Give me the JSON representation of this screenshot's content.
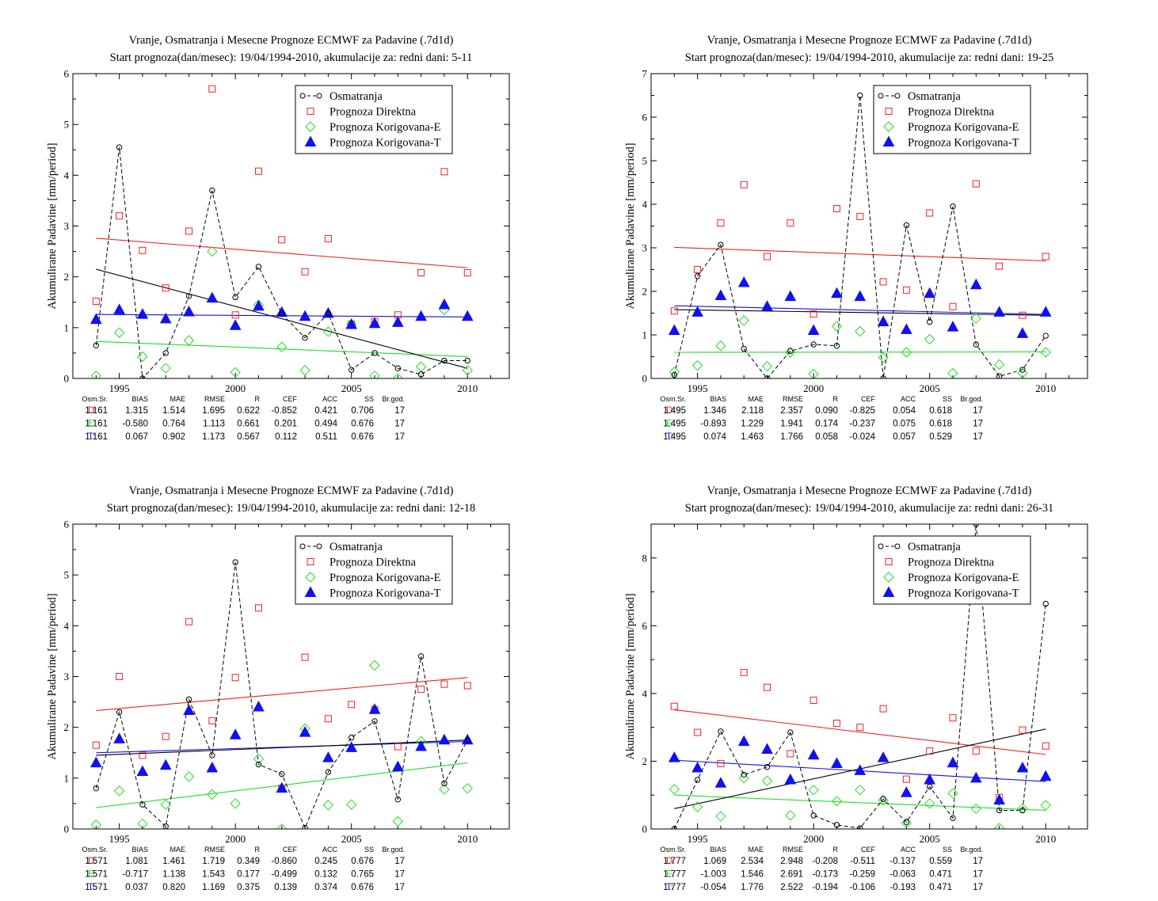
{
  "colors": {
    "obs": "#000000",
    "direct": "#ee2222",
    "corr_e": "#22dd22",
    "corr_t": "#1111ee"
  },
  "legend": [
    "Osmatranja",
    "Prognoza Direktna",
    "Prognoza Korigovana-E",
    "Prognoza Korigovana-T"
  ],
  "stats_headers": [
    "Osm.Sr.",
    "BIAS",
    "MAE",
    "RMSE",
    "R",
    "CEF",
    "ACC",
    "SS",
    "Br.god."
  ],
  "chart_data": [
    {
      "type": "scatter",
      "title": "Vranje, Osmatranja i Mesecne Prognoze ECMWF za Padavine (.7d1d)",
      "subtitle": "Start prognoza(dan/mesec): 19/04/1994-2010, akumulacije za: redni dani: 5-11",
      "ylabel": "Akumulirane Padavine [mm/period]",
      "xlabel": "",
      "xlim": [
        1993,
        2011.8
      ],
      "ylim": [
        0,
        6
      ],
      "xticks": [
        1995,
        2000,
        2005,
        2010
      ],
      "yticks": [
        0,
        1,
        2,
        3,
        4,
        5,
        6
      ],
      "x": [
        1994,
        1995,
        1996,
        1997,
        1998,
        1999,
        2000,
        2001,
        2002,
        2003,
        2004,
        2005,
        2006,
        2007,
        2008,
        2009,
        2010
      ],
      "series": [
        {
          "name": "Osmatranja",
          "values": [
            0.65,
            4.55,
            0.0,
            0.5,
            1.62,
            3.7,
            1.6,
            2.2,
            1.27,
            0.8,
            1.28,
            0.17,
            0.5,
            0.2,
            0.08,
            0.35,
            0.35
          ]
        },
        {
          "name": "Prognoza Direktna",
          "values": [
            1.52,
            3.2,
            2.52,
            1.78,
            2.9,
            5.7,
            1.25,
            4.08,
            2.73,
            2.1,
            2.75,
            1.07,
            1.12,
            1.25,
            2.08,
            4.07,
            2.08
          ]
        },
        {
          "name": "Prognoza Korigovana-E",
          "values": [
            0.05,
            0.9,
            0.43,
            0.2,
            0.75,
            2.5,
            0.12,
            1.45,
            0.62,
            0.16,
            0.92,
            1.07,
            0.05,
            0.0,
            0.23,
            1.35,
            0.16
          ]
        },
        {
          "name": "Prognoza Korigovana-T",
          "values": [
            1.16,
            1.35,
            1.26,
            1.17,
            1.31,
            1.58,
            1.04,
            1.42,
            1.3,
            1.22,
            1.28,
            1.06,
            1.08,
            1.1,
            1.22,
            1.45,
            1.22
          ]
        }
      ],
      "trends": [
        {
          "series": "Osmatranja",
          "y0": 2.15,
          "y1": 0.2
        },
        {
          "series": "Prognoza Direktna",
          "y0": 2.76,
          "y1": 2.18
        },
        {
          "series": "Prognoza Korigovana-E",
          "y0": 0.73,
          "y1": 0.43
        },
        {
          "series": "Prognoza Korigovana-T",
          "y0": 1.26,
          "y1": 1.21
        }
      ],
      "stats": [
        {
          "label": "D:",
          "values": [
            "1.161",
            "1.315",
            "1.514",
            "1.695",
            "0.622",
            "-0.852",
            "0.421",
            "0.706",
            "17"
          ]
        },
        {
          "label": "E:",
          "values": [
            "1.161",
            "-0.580",
            "0.764",
            "1.113",
            "0.661",
            "0.201",
            "0.494",
            "0.676",
            "17"
          ]
        },
        {
          "label": "T:",
          "values": [
            "1.161",
            "0.067",
            "0.902",
            "1.173",
            "0.567",
            "0.112",
            "0.511",
            "0.676",
            "17"
          ]
        }
      ]
    },
    {
      "type": "scatter",
      "title": "Vranje, Osmatranja i Mesecne Prognoze ECMWF za Padavine (.7d1d)",
      "subtitle": "Start prognoza(dan/mesec): 19/04/1994-2010, akumulacije za: redni dani: 19-25",
      "ylabel": "Akumulirane Padavine [mm/period]",
      "xlabel": "",
      "xlim": [
        1993,
        2011.8
      ],
      "ylim": [
        0,
        7
      ],
      "xticks": [
        1995,
        2000,
        2005,
        2010
      ],
      "yticks": [
        0,
        1,
        2,
        3,
        4,
        5,
        6,
        7
      ],
      "x": [
        1994,
        1995,
        1996,
        1997,
        1998,
        1999,
        2000,
        2001,
        2002,
        2003,
        2004,
        2005,
        2006,
        2007,
        2008,
        2009,
        2010
      ],
      "series": [
        {
          "name": "Osmatranja",
          "values": [
            0.08,
            2.35,
            3.07,
            0.68,
            0.0,
            0.63,
            0.78,
            0.75,
            6.5,
            0.0,
            3.52,
            1.3,
            3.95,
            0.78,
            0.05,
            0.2,
            0.98
          ]
        },
        {
          "name": "Prognoza Direktna",
          "values": [
            1.55,
            2.5,
            3.57,
            4.45,
            2.8,
            3.57,
            1.48,
            3.9,
            3.72,
            2.22,
            2.03,
            3.8,
            1.65,
            4.47,
            2.58,
            1.45,
            2.8
          ]
        },
        {
          "name": "Prognoza Korigovana-E",
          "values": [
            0.15,
            0.3,
            0.75,
            1.33,
            0.28,
            0.6,
            0.1,
            1.2,
            1.08,
            0.48,
            0.6,
            0.9,
            0.12,
            1.38,
            0.32,
            0.12,
            0.6
          ]
        },
        {
          "name": "Prognoza Korigovana-T",
          "values": [
            1.1,
            1.52,
            1.9,
            2.2,
            1.65,
            1.88,
            1.1,
            1.95,
            1.88,
            1.3,
            1.12,
            1.95,
            1.18,
            2.15,
            1.52,
            1.03,
            1.52
          ]
        }
      ],
      "trends": [
        {
          "series": "Osmatranja",
          "y0": 1.58,
          "y1": 1.45
        },
        {
          "series": "Prognoza Direktna",
          "y0": 3.01,
          "y1": 2.7
        },
        {
          "series": "Prognoza Korigovana-E",
          "y0": 0.6,
          "y1": 0.61
        },
        {
          "series": "Prognoza Korigovana-T",
          "y0": 1.67,
          "y1": 1.47
        }
      ],
      "stats": [
        {
          "label": "D:",
          "values": [
            "1.495",
            "1.346",
            "2.118",
            "2.357",
            "0.090",
            "-0.825",
            "0.054",
            "0.618",
            "17"
          ]
        },
        {
          "label": "E:",
          "values": [
            "1.495",
            "-0.893",
            "1.229",
            "1.941",
            "0.174",
            "-0.237",
            "0.075",
            "0.618",
            "17"
          ]
        },
        {
          "label": "T:",
          "values": [
            "1.495",
            "0.074",
            "1.463",
            "1.766",
            "0.058",
            "-0.024",
            "0.057",
            "0.529",
            "17"
          ]
        }
      ]
    },
    {
      "type": "scatter",
      "title": "Vranje, Osmatranja i Mesecne Prognoze ECMWF za Padavine (.7d1d)",
      "subtitle": "Start prognoza(dan/mesec): 19/04/1994-2010, akumulacije za: redni dani: 12-18",
      "ylabel": "Akumulirane Padavine [mm/period]",
      "xlabel": "",
      "xlim": [
        1993,
        2011.8
      ],
      "ylim": [
        0,
        6
      ],
      "xticks": [
        1995,
        2000,
        2005,
        2010
      ],
      "yticks": [
        0,
        1,
        2,
        3,
        4,
        5,
        6
      ],
      "x": [
        1994,
        1995,
        1996,
        1997,
        1998,
        1999,
        2000,
        2001,
        2002,
        2003,
        2004,
        2005,
        2006,
        2007,
        2008,
        2009,
        2010
      ],
      "series": [
        {
          "name": "Osmatranja",
          "values": [
            0.8,
            2.3,
            0.48,
            0.05,
            2.55,
            1.45,
            5.25,
            1.27,
            1.08,
            0.02,
            1.12,
            1.8,
            2.12,
            0.58,
            3.4,
            0.9,
            1.75
          ]
        },
        {
          "name": "Prognoza Direktna",
          "values": [
            1.65,
            3.0,
            1.45,
            1.82,
            4.08,
            2.13,
            2.98,
            4.35,
            0.8,
            3.38,
            2.17,
            2.45,
            2.35,
            1.62,
            2.75,
            2.85,
            2.82
          ]
        },
        {
          "name": "Prognoza Korigovana-E",
          "values": [
            0.08,
            0.75,
            0.1,
            0.48,
            1.03,
            0.68,
            0.5,
            1.38,
            0.0,
            1.97,
            0.47,
            0.48,
            3.22,
            0.15,
            1.72,
            0.78,
            0.8
          ]
        },
        {
          "name": "Prognoza Korigovana-T",
          "values": [
            1.3,
            1.77,
            1.13,
            1.25,
            2.33,
            1.2,
            1.85,
            2.4,
            0.8,
            1.9,
            1.4,
            1.6,
            2.35,
            1.22,
            1.62,
            1.75,
            1.75
          ]
        }
      ],
      "trends": [
        {
          "series": "Osmatranja",
          "y0": 1.45,
          "y1": 1.75
        },
        {
          "series": "Prognoza Direktna",
          "y0": 2.33,
          "y1": 2.98
        },
        {
          "series": "Prognoza Korigovana-E",
          "y0": 0.42,
          "y1": 1.3
        },
        {
          "series": "Prognoza Korigovana-T",
          "y0": 1.5,
          "y1": 1.72
        }
      ],
      "stats": [
        {
          "label": "D:",
          "values": [
            "1.571",
            "1.081",
            "1.461",
            "1.719",
            "0.349",
            "-0.860",
            "0.245",
            "0.676",
            "17"
          ]
        },
        {
          "label": "E:",
          "values": [
            "1.571",
            "-0.717",
            "1.138",
            "1.543",
            "0.177",
            "-0.499",
            "0.132",
            "0.765",
            "17"
          ]
        },
        {
          "label": "T:",
          "values": [
            "1.571",
            "0.037",
            "0.820",
            "1.169",
            "0.375",
            "0.139",
            "0.374",
            "0.676",
            "17"
          ]
        }
      ]
    },
    {
      "type": "scatter",
      "title": "Vranje, Osmatranja i Mesecne Prognoze ECMWF za Padavine (.7d1d)",
      "subtitle": "Start prognoza(dan/mesec): 19/04/1994-2010, akumulacije za: redni dani: 26-31",
      "ylabel": "Akumulirane Padavine [mm/period]",
      "xlabel": "",
      "xlim": [
        1993,
        2011.8
      ],
      "ylim": [
        0,
        9
      ],
      "xticks": [
        1995,
        2000,
        2005,
        2010
      ],
      "yticks": [
        0,
        2,
        4,
        6,
        8
      ],
      "x": [
        1994,
        1995,
        1996,
        1997,
        1998,
        1999,
        2000,
        2001,
        2002,
        2003,
        2004,
        2005,
        2006,
        2007,
        2008,
        2009,
        2010
      ],
      "series": [
        {
          "name": "Osmatranja",
          "values": [
            0.0,
            1.45,
            2.88,
            1.6,
            1.83,
            2.85,
            0.4,
            0.12,
            0.02,
            0.88,
            0.2,
            1.25,
            0.32,
            9.0,
            0.55,
            0.55,
            6.65
          ]
        },
        {
          "name": "Prognoza Direktna",
          "values": [
            3.62,
            2.85,
            1.93,
            4.62,
            4.18,
            2.22,
            3.8,
            3.12,
            3.0,
            3.55,
            1.47,
            2.3,
            3.28,
            2.3,
            0.93,
            2.92,
            2.45
          ]
        },
        {
          "name": "Prognoza Korigovana-E",
          "values": [
            1.17,
            0.65,
            0.37,
            1.5,
            1.42,
            0.4,
            1.15,
            0.82,
            1.15,
            0.85,
            0.18,
            0.75,
            1.05,
            0.6,
            0.02,
            0.6,
            0.7
          ]
        },
        {
          "name": "Prognoza Korigovana-T",
          "values": [
            2.1,
            1.8,
            1.35,
            2.58,
            2.35,
            1.45,
            2.18,
            1.93,
            1.72,
            2.1,
            1.07,
            1.45,
            1.95,
            1.5,
            0.85,
            1.8,
            1.55
          ]
        }
      ],
      "trends": [
        {
          "series": "Osmatranja",
          "y0": 0.6,
          "y1": 2.95
        },
        {
          "series": "Prognoza Direktna",
          "y0": 3.52,
          "y1": 2.2
        },
        {
          "series": "Prognoza Korigovana-E",
          "y0": 1.0,
          "y1": 0.55
        },
        {
          "series": "Prognoza Korigovana-T",
          "y0": 2.03,
          "y1": 1.4
        }
      ],
      "stats": [
        {
          "label": "D:",
          "values": [
            "1.777",
            "1.069",
            "2.534",
            "2.948",
            "-0.208",
            "-0.511",
            "-0.137",
            "0.559",
            "17"
          ]
        },
        {
          "label": "E:",
          "values": [
            "1.777",
            "-1.003",
            "1.546",
            "2.691",
            "-0.173",
            "-0.259",
            "-0.063",
            "0.471",
            "17"
          ]
        },
        {
          "label": "T:",
          "values": [
            "1.777",
            "-0.054",
            "1.776",
            "2.522",
            "-0.194",
            "-0.106",
            "-0.193",
            "0.471",
            "17"
          ]
        }
      ]
    }
  ]
}
